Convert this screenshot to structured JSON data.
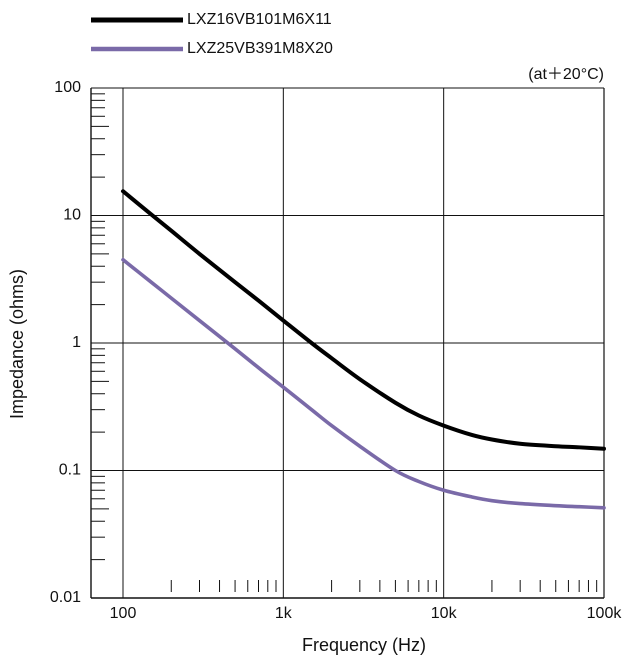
{
  "chart_data": {
    "type": "line",
    "xlabel": "Frequency (Hz)",
    "ylabel": "Impedance (ohms)",
    "annotation": "(at＋20°C)",
    "x_scale": "log",
    "y_scale": "log",
    "xlim": [
      100,
      100000
    ],
    "ylim": [
      0.01,
      100
    ],
    "grid": true,
    "legend_position": "top-left",
    "x_ticks": [
      {
        "value": 100,
        "label": "100"
      },
      {
        "value": 1000,
        "label": "1k"
      },
      {
        "value": 10000,
        "label": "10k"
      },
      {
        "value": 100000,
        "label": "100k"
      }
    ],
    "y_ticks": [
      {
        "value": 0.01,
        "label": "0.01"
      },
      {
        "value": 0.1,
        "label": "0.1"
      },
      {
        "value": 1,
        "label": "1"
      },
      {
        "value": 10,
        "label": "10"
      },
      {
        "value": 100,
        "label": "100"
      }
    ],
    "series": [
      {
        "name": "LXZ16VB101M6X11",
        "color": "#000000",
        "x": [
          100,
          150,
          200,
          300,
          500,
          700,
          1000,
          1500,
          2000,
          3000,
          5000,
          7000,
          10000,
          15000,
          20000,
          30000,
          50000,
          70000,
          100000
        ],
        "y": [
          15.5,
          10.2,
          7.6,
          5.0,
          3.0,
          2.15,
          1.5,
          1.0,
          0.76,
          0.52,
          0.34,
          0.27,
          0.225,
          0.19,
          0.175,
          0.162,
          0.155,
          0.152,
          0.148
        ]
      },
      {
        "name": "LXZ25VB391M8X20",
        "color": "#7a6aa8",
        "x": [
          100,
          150,
          200,
          300,
          500,
          700,
          1000,
          1500,
          2000,
          3000,
          5000,
          7000,
          10000,
          15000,
          20000,
          30000,
          50000,
          70000,
          100000
        ],
        "y": [
          4.5,
          3.0,
          2.25,
          1.5,
          0.9,
          0.64,
          0.45,
          0.3,
          0.225,
          0.155,
          0.1,
          0.082,
          0.07,
          0.062,
          0.058,
          0.055,
          0.053,
          0.052,
          0.051
        ]
      }
    ]
  }
}
